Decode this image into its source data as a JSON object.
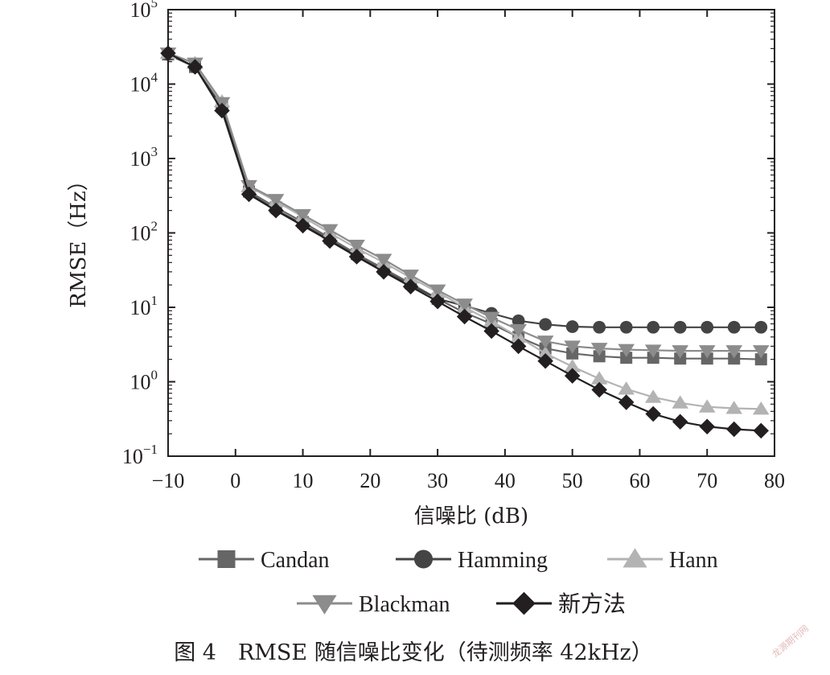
{
  "chart_data": {
    "type": "line",
    "title": "",
    "xlabel": "信噪比 (dB)",
    "ylabel": "RMSE（Hz）",
    "xlim": [
      -10,
      80
    ],
    "ylim": [
      0.1,
      100000
    ],
    "yscale": "log",
    "grid": false,
    "legend_position": "bottom",
    "xticks": [
      -10,
      0,
      10,
      20,
      30,
      40,
      50,
      60,
      70,
      80
    ],
    "xtick_labels": [
      "−10",
      "0",
      "10",
      "20",
      "30",
      "40",
      "50",
      "60",
      "70",
      "80"
    ],
    "yticks": [
      {
        "value": 0.1,
        "base": "10",
        "exp": "−1"
      },
      {
        "value": 1,
        "base": "10",
        "exp": "0"
      },
      {
        "value": 10,
        "base": "10",
        "exp": "1"
      },
      {
        "value": 100,
        "base": "10",
        "exp": "2"
      },
      {
        "value": 1000,
        "base": "10",
        "exp": "3"
      },
      {
        "value": 10000,
        "base": "10",
        "exp": "4"
      },
      {
        "value": 100000,
        "base": "10",
        "exp": "5"
      }
    ],
    "x": [
      -10,
      -6,
      -2,
      2,
      6,
      10,
      14,
      18,
      22,
      26,
      30,
      34,
      38,
      42,
      46,
      50,
      54,
      58,
      62,
      66,
      70,
      74,
      78
    ],
    "series": [
      {
        "name": "Candan",
        "marker": "square",
        "color": "#666666",
        "values": [
          25000,
          17000,
          5000,
          360,
          220,
          140,
          85,
          52,
          33,
          21,
          13,
          8.5,
          6.0,
          4.0,
          2.8,
          2.4,
          2.2,
          2.1,
          2.1,
          2.05,
          2.05,
          2.05,
          2.0
        ]
      },
      {
        "name": "Hamming",
        "marker": "circle",
        "color": "#444444",
        "values": [
          25000,
          17000,
          4800,
          340,
          205,
          130,
          80,
          49,
          31,
          20,
          13,
          10.5,
          8.3,
          6.6,
          5.9,
          5.5,
          5.4,
          5.4,
          5.4,
          5.4,
          5.4,
          5.4,
          5.4
        ]
      },
      {
        "name": "Hann",
        "marker": "triangle-up",
        "color": "#b3b3b3",
        "values": [
          26000,
          19000,
          5800,
          420,
          265,
          165,
          100,
          62,
          40,
          25,
          16,
          10,
          6.5,
          4.0,
          2.4,
          1.6,
          1.1,
          0.8,
          0.62,
          0.52,
          0.46,
          0.44,
          0.43
        ]
      },
      {
        "name": "Blackman",
        "marker": "triangle-down",
        "color": "#8c8c8c",
        "values": [
          26000,
          19000,
          5600,
          430,
          280,
          175,
          110,
          68,
          44,
          27,
          17,
          11,
          7.3,
          5.0,
          3.5,
          3.0,
          2.8,
          2.7,
          2.65,
          2.6,
          2.6,
          2.6,
          2.6
        ]
      },
      {
        "name": "新方法",
        "marker": "diamond",
        "color": "#231f20",
        "values": [
          26000,
          17000,
          4400,
          330,
          200,
          125,
          78,
          48,
          30,
          19,
          12,
          7.5,
          4.8,
          3.0,
          1.9,
          1.2,
          0.78,
          0.53,
          0.37,
          0.29,
          0.25,
          0.23,
          0.22
        ]
      }
    ]
  },
  "caption": "图 4　RMSE 随信噪比变化（待测频率 42kHz）",
  "watermark": "龙源期刊网"
}
